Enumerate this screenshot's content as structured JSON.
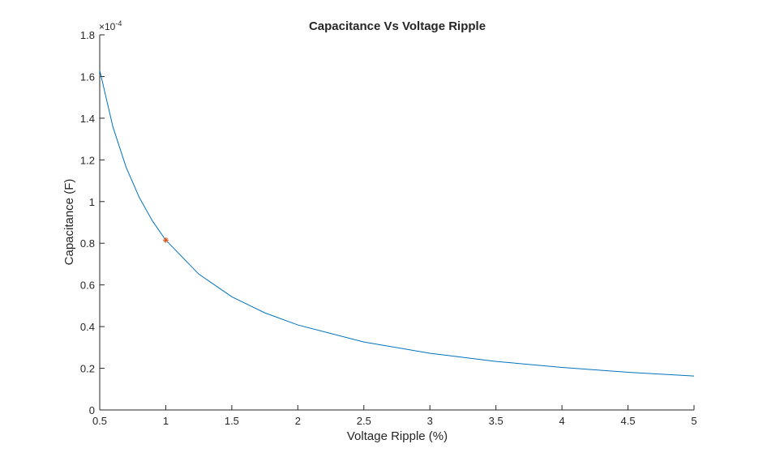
{
  "chart_data": {
    "type": "line",
    "title": "Capacitance Vs Voltage Ripple",
    "xlabel": "Voltage Ripple (%)",
    "ylabel": "Capacitance (F)",
    "xlim": [
      0.5,
      5
    ],
    "ylim": [
      0,
      0.00018
    ],
    "x_ticks": [
      "0.5",
      "1",
      "1.5",
      "2",
      "2.5",
      "3",
      "3.5",
      "4",
      "4.5",
      "5"
    ],
    "y_ticks": [
      "0",
      "0.2",
      "0.4",
      "0.6",
      "0.8",
      "1",
      "1.2",
      "1.4",
      "1.6",
      "1.8"
    ],
    "y_exponent_base": "×10",
    "y_exponent_power": "-4",
    "grid": false,
    "colors": {
      "line": "#0072BD",
      "marker": "#D95319",
      "axis": "#262626"
    },
    "series": [
      {
        "type": "line",
        "x": [
          0.5,
          0.6,
          0.7,
          0.8,
          0.9,
          1.0,
          1.25,
          1.5,
          1.75,
          2.0,
          2.5,
          3.0,
          3.5,
          4.0,
          4.5,
          5.0
        ],
        "values": [
          0.000163,
          0.0001358,
          0.0001164,
          0.0001019,
          9.06e-05,
          8.15e-05,
          6.52e-05,
          5.43e-05,
          4.66e-05,
          4.08e-05,
          3.26e-05,
          2.72e-05,
          2.33e-05,
          2.04e-05,
          1.81e-05,
          1.63e-05
        ]
      },
      {
        "type": "scatter",
        "marker": "asterisk",
        "x": [
          1.0
        ],
        "values": [
          8.15e-05
        ]
      }
    ]
  }
}
